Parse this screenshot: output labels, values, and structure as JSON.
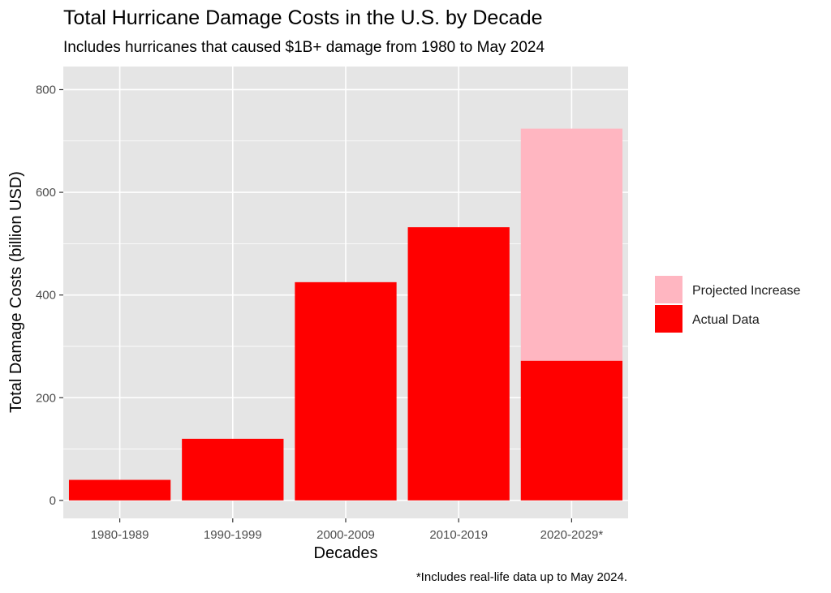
{
  "chart_data": {
    "type": "bar",
    "stacked": true,
    "title": "Total Hurricane Damage Costs in the U.S. by Decade",
    "subtitle": "Includes hurricanes that caused $1B+ damage from 1980 to May 2024",
    "xlabel": "Decades",
    "ylabel": "Total Damage Costs (billion USD)",
    "caption": "*Includes real-life data up to May 2024.",
    "categories": [
      "1980-1989",
      "1990-1999",
      "2000-2009",
      "2010-2019",
      "2020-2029*"
    ],
    "yticks": [
      0,
      200,
      400,
      600,
      800
    ],
    "ylim": [
      -35,
      845
    ],
    "grid": true,
    "legend_position": "right",
    "series": [
      {
        "name": "Actual Data",
        "color": "#ff0000",
        "values": [
          40,
          120,
          425,
          532,
          272
        ]
      },
      {
        "name": "Projected Increase",
        "color": "#ffb6c1",
        "values": [
          0,
          0,
          0,
          0,
          452
        ]
      }
    ],
    "legend": [
      "Projected Increase",
      "Actual Data"
    ],
    "panel_background": "#e5e5e5",
    "grid_color": "#ffffff"
  }
}
